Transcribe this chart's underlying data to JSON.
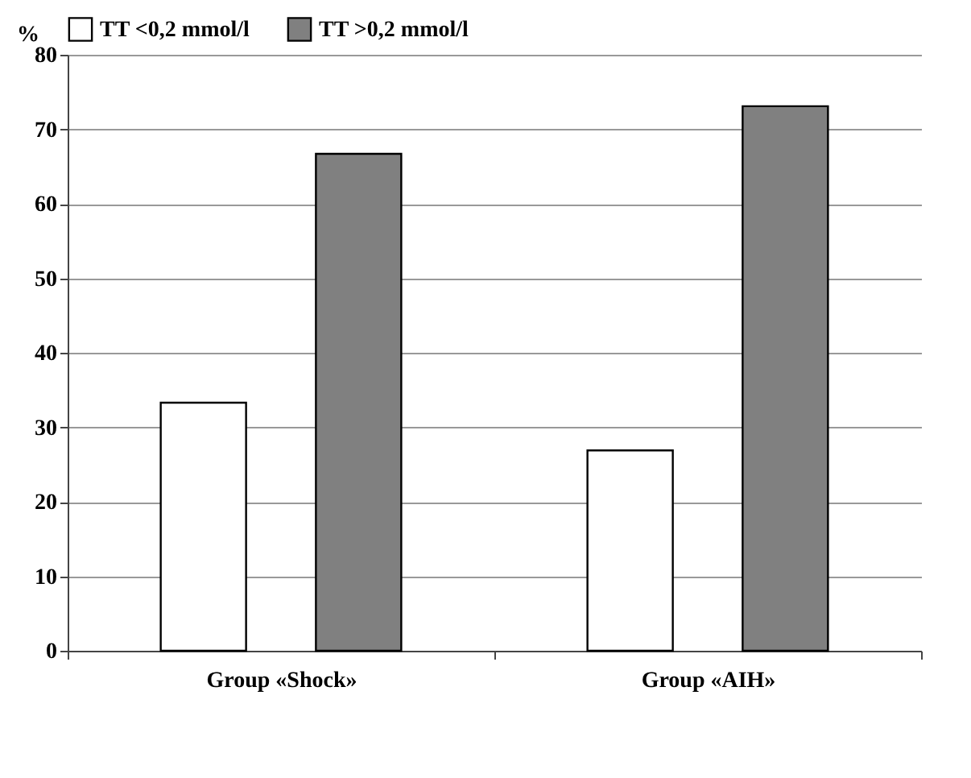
{
  "chart_data": {
    "type": "bar",
    "ylabel": "%",
    "categories": [
      "Group «Shock»",
      "Group «AIH»"
    ],
    "series": [
      {
        "name": "TT <0,2 mmol/l",
        "color": "#ffffff",
        "values": [
          33.3,
          26.9
        ]
      },
      {
        "name": "TT >0,2 mmol/l",
        "color": "#808080",
        "values": [
          66.7,
          73.1
        ]
      }
    ],
    "ylim": [
      0,
      80
    ],
    "yticks": [
      0,
      10,
      20,
      30,
      40,
      50,
      60,
      70,
      80
    ],
    "grid": "y",
    "legend": "top"
  }
}
